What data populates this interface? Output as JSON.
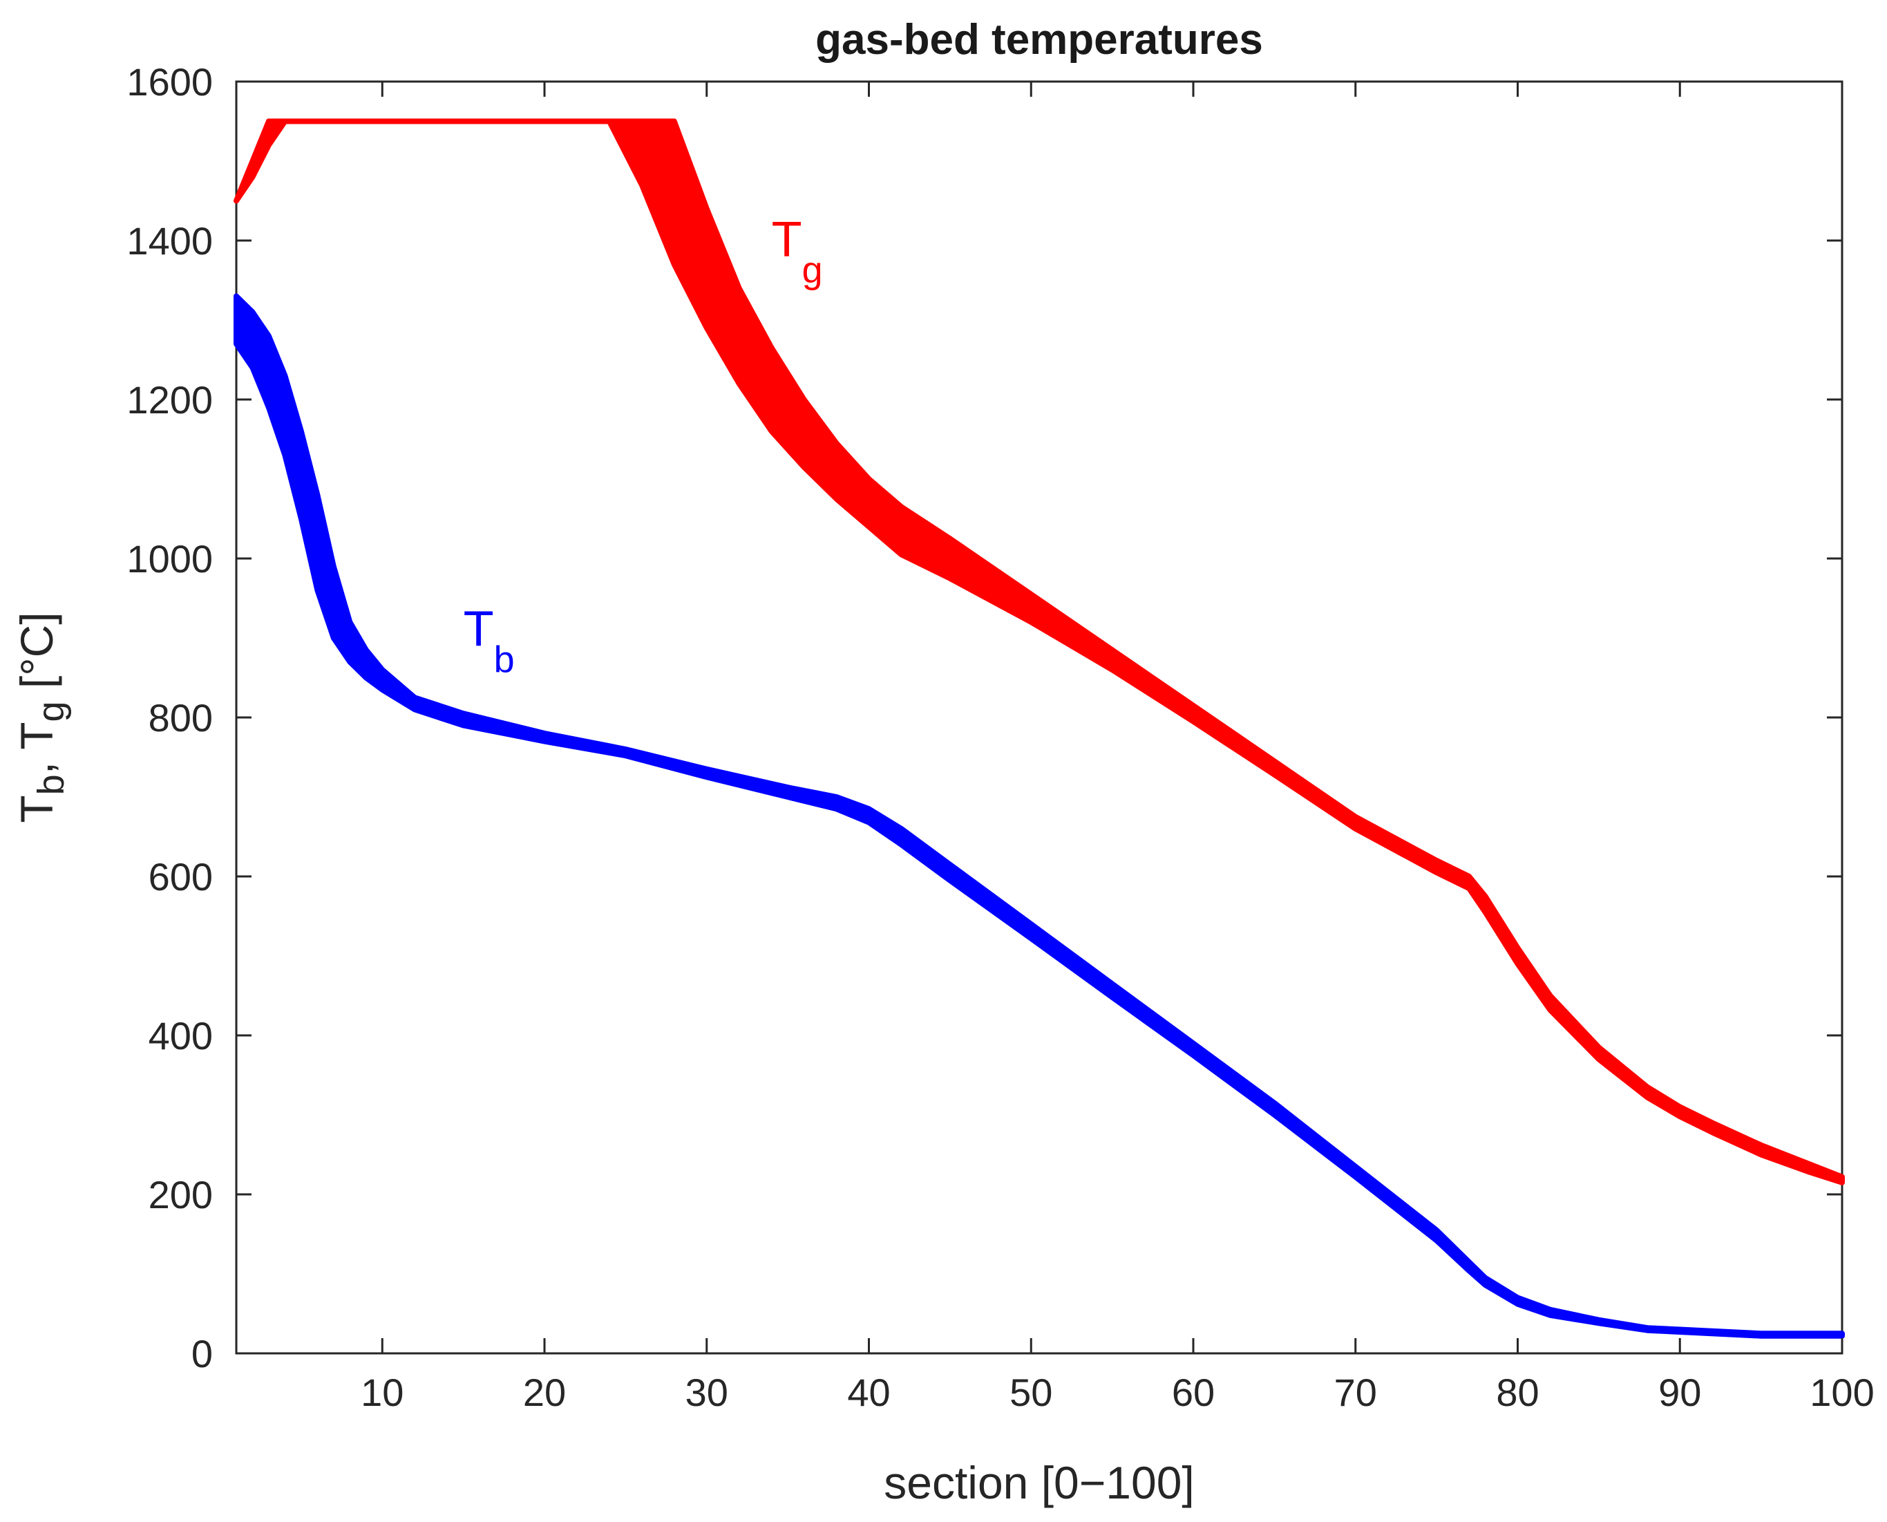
{
  "chart_data": {
    "type": "line",
    "title": "gas-bed temperatures",
    "xlabel": "section [0−100]",
    "ylabel": {
      "parts": [
        {
          "text": "T",
          "sub": false
        },
        {
          "text": "b",
          "sub": true
        },
        {
          "text": ", T",
          "sub": false
        },
        {
          "text": "g",
          "sub": true
        },
        {
          "text": " [°C]",
          "sub": false
        }
      ]
    },
    "xlim": [
      1,
      100
    ],
    "ylim": [
      0,
      1600
    ],
    "xticks": [
      10,
      20,
      30,
      40,
      50,
      60,
      70,
      80,
      90,
      100
    ],
    "yticks": [
      0,
      200,
      400,
      600,
      800,
      1000,
      1200,
      1400,
      1600
    ],
    "grid": false,
    "series": [
      {
        "name": "Tg",
        "label_main": "T",
        "label_sub": "g",
        "label_at": [
          34,
          1380
        ],
        "color": "#ff0000",
        "x": [
          1,
          2,
          3,
          4,
          6,
          10,
          15,
          20,
          23,
          24,
          26,
          28,
          30,
          32,
          34,
          36,
          38,
          40,
          42,
          45,
          50,
          55,
          60,
          65,
          70,
          75,
          77,
          78,
          80,
          82,
          85,
          88,
          90,
          92,
          95,
          98,
          100
        ],
        "upper": [
          1450,
          1500,
          1550,
          1550,
          1550,
          1550,
          1550,
          1550,
          1550,
          1550,
          1550,
          1550,
          1440,
          1340,
          1265,
          1200,
          1145,
          1100,
          1065,
          1025,
          955,
          885,
          815,
          745,
          675,
          620,
          600,
          575,
          510,
          450,
          385,
          335,
          310,
          290,
          262,
          238,
          222
        ],
        "lower": [
          1450,
          1480,
          1520,
          1550,
          1550,
          1550,
          1550,
          1550,
          1550,
          1550,
          1470,
          1370,
          1290,
          1220,
          1160,
          1115,
          1075,
          1040,
          1005,
          975,
          920,
          860,
          795,
          728,
          660,
          605,
          585,
          555,
          490,
          432,
          370,
          322,
          298,
          278,
          250,
          228,
          215
        ]
      },
      {
        "name": "Tb",
        "label_main": "T",
        "label_sub": "b",
        "label_at": [
          15,
          890
        ],
        "color": "#0000ff",
        "x": [
          1,
          2,
          3,
          4,
          5,
          6,
          7,
          8,
          9,
          10,
          12,
          15,
          20,
          25,
          30,
          35,
          38,
          40,
          42,
          45,
          50,
          55,
          60,
          65,
          70,
          75,
          77,
          78,
          80,
          82,
          85,
          88,
          90,
          95,
          100
        ],
        "upper": [
          1330,
          1310,
          1280,
          1230,
          1160,
          1080,
          990,
          920,
          885,
          860,
          825,
          805,
          780,
          760,
          735,
          712,
          700,
          685,
          660,
          615,
          540,
          465,
          390,
          315,
          235,
          155,
          115,
          95,
          70,
          55,
          42,
          32,
          30,
          25,
          25
        ],
        "lower": [
          1270,
          1240,
          1190,
          1130,
          1050,
          960,
          900,
          870,
          850,
          835,
          810,
          790,
          770,
          752,
          725,
          700,
          685,
          668,
          640,
          595,
          522,
          448,
          375,
          300,
          222,
          142,
          104,
          86,
          62,
          48,
          38,
          29,
          27,
          22,
          22
        ]
      }
    ]
  }
}
